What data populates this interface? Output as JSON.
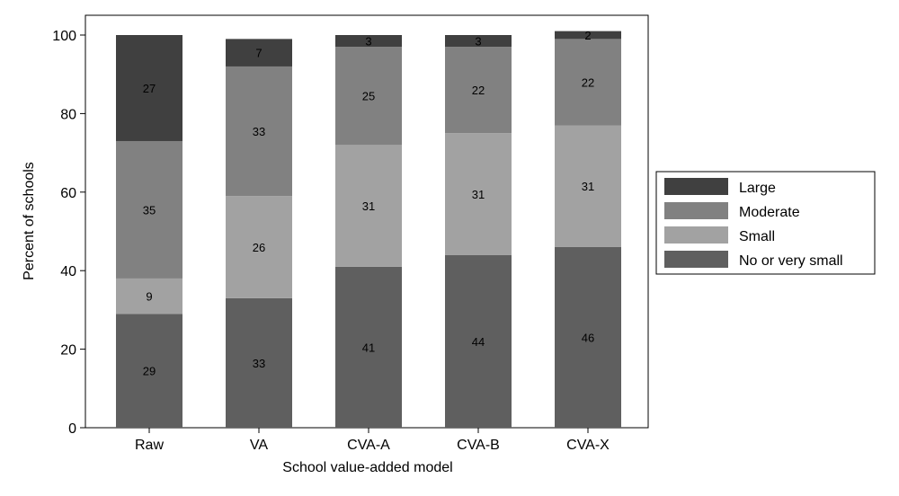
{
  "chart_data": {
    "type": "bar",
    "stacked": true,
    "categories": [
      "Raw",
      "VA",
      "CVA-A",
      "CVA-B",
      "CVA-X"
    ],
    "series": [
      {
        "name": "No or very small",
        "values": [
          29,
          33,
          41,
          44,
          46
        ],
        "labels": [
          "29",
          "33",
          "41",
          "44",
          "46"
        ],
        "color": "#5f5f5f"
      },
      {
        "name": "Small",
        "values": [
          9,
          26,
          31,
          31,
          31
        ],
        "labels": [
          "9",
          "26",
          "31",
          "31",
          "31"
        ],
        "color": "#a2a2a2"
      },
      {
        "name": "Moderate",
        "values": [
          35,
          33,
          25,
          22,
          22
        ],
        "labels": [
          "35",
          "33",
          "25",
          "22",
          "22"
        ],
        "color": "#818181"
      },
      {
        "name": "Large",
        "values": [
          27,
          7,
          3,
          3,
          2
        ],
        "labels": [
          "27",
          "7",
          "3",
          "3",
          "2"
        ],
        "color": "#404040"
      }
    ],
    "xlabel": "School value-added model",
    "ylabel": "Percent of schools",
    "ylim": [
      0,
      100
    ],
    "yticks": [
      0,
      20,
      40,
      60,
      80,
      100
    ],
    "grid": false,
    "legend_position": "right"
  }
}
